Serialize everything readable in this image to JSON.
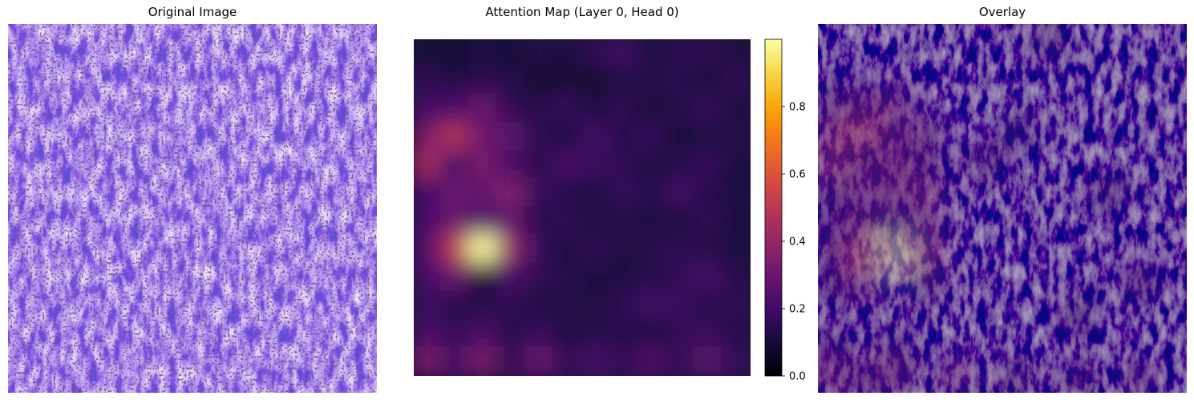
{
  "figure": {
    "panels": [
      {
        "id": "original",
        "title": "Original Image"
      },
      {
        "id": "attention",
        "title": "Attention Map (Layer 0, Head 0)"
      },
      {
        "id": "overlay",
        "title": "Overlay"
      }
    ]
  },
  "chart_data": {
    "type": "heatmap",
    "title": "Attention Map (Layer 0, Head 0)",
    "colormap": "inferno",
    "colorbar": {
      "range": [
        0.0,
        1.0
      ],
      "ticks": [
        0.0,
        0.2,
        0.4,
        0.6,
        0.8
      ],
      "tick_labels": [
        "0.0",
        "0.2",
        "0.4",
        "0.6",
        "0.8"
      ]
    },
    "axes_visible": false,
    "grid": [
      [
        0.1,
        0.09,
        0.12,
        0.1,
        0.14,
        0.12,
        0.16,
        0.2,
        0.12,
        0.15,
        0.16,
        0.12
      ],
      [
        0.16,
        0.12,
        0.15,
        0.14,
        0.08,
        0.1,
        0.09,
        0.13,
        0.14,
        0.15,
        0.1,
        0.16
      ],
      [
        0.2,
        0.22,
        0.3,
        0.16,
        0.14,
        0.18,
        0.12,
        0.16,
        0.1,
        0.14,
        0.18,
        0.12
      ],
      [
        0.35,
        0.48,
        0.3,
        0.26,
        0.16,
        0.12,
        0.2,
        0.14,
        0.18,
        0.1,
        0.12,
        0.14
      ],
      [
        0.45,
        0.2,
        0.34,
        0.22,
        0.14,
        0.22,
        0.18,
        0.16,
        0.12,
        0.14,
        0.18,
        0.12
      ],
      [
        0.2,
        0.3,
        0.28,
        0.36,
        0.18,
        0.14,
        0.12,
        0.18,
        0.14,
        0.2,
        0.14,
        0.12
      ],
      [
        0.22,
        0.3,
        0.22,
        0.28,
        0.14,
        0.16,
        0.12,
        0.14,
        0.12,
        0.12,
        0.16,
        0.12
      ],
      [
        0.25,
        0.5,
        1.0,
        0.4,
        0.18,
        0.12,
        0.16,
        0.12,
        0.14,
        0.16,
        0.14,
        0.12
      ],
      [
        0.22,
        0.3,
        0.08,
        0.22,
        0.16,
        0.14,
        0.12,
        0.12,
        0.14,
        0.16,
        0.22,
        0.14
      ],
      [
        0.18,
        0.14,
        0.14,
        0.16,
        0.12,
        0.14,
        0.12,
        0.16,
        0.2,
        0.18,
        0.14,
        0.16
      ],
      [
        0.22,
        0.16,
        0.22,
        0.14,
        0.18,
        0.12,
        0.14,
        0.14,
        0.12,
        0.16,
        0.18,
        0.14
      ],
      [
        0.35,
        0.22,
        0.34,
        0.16,
        0.3,
        0.16,
        0.22,
        0.16,
        0.24,
        0.16,
        0.26,
        0.18
      ]
    ],
    "peak": {
      "row": 7,
      "col": 2,
      "value": 1.0
    }
  }
}
